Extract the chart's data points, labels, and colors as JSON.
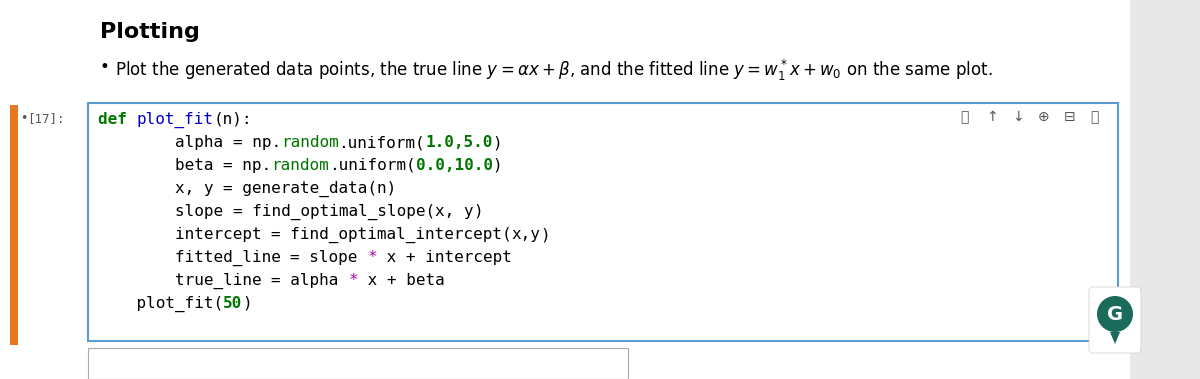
{
  "title": "Plotting",
  "bullet_line": "Plot the generated data points, the true line $y = \\alpha x + \\beta$, and the fitted line $y = w_1^*x + w_0$ on the same plot.",
  "cell_number": "•[17]:",
  "bg_color": "#ffffff",
  "cell_border_color": "#5B9BD5",
  "left_bar_color": "#E87722",
  "outer_bg": "#f0f0f0",
  "title_fontsize": 16,
  "bullet_fontsize": 12,
  "code_fontsize": 11.5,
  "cell_num_fontsize": 10,
  "code_lines": [
    [
      [
        "def ",
        "#007700",
        true
      ],
      [
        "plot_fit",
        "#0000CC",
        false
      ],
      [
        "(n):",
        "#000000",
        false
      ]
    ],
    [
      [
        "        alpha ",
        "#000000",
        false
      ],
      [
        "= np.",
        "#000000",
        false
      ],
      [
        "random",
        "#007700",
        false
      ],
      [
        ".uniform(",
        "#000000",
        false
      ],
      [
        "1.0,5.0",
        "#007700",
        true
      ],
      [
        ")",
        "#000000",
        false
      ]
    ],
    [
      [
        "        beta ",
        "#000000",
        false
      ],
      [
        "= np.",
        "#000000",
        false
      ],
      [
        "random",
        "#007700",
        false
      ],
      [
        ".uniform(",
        "#000000",
        false
      ],
      [
        "0.0,10.0",
        "#007700",
        true
      ],
      [
        ")",
        "#000000",
        false
      ]
    ],
    [
      [
        "        x, y ",
        "#000000",
        false
      ],
      [
        "= generate_data(n)",
        "#000000",
        false
      ]
    ],
    [
      [
        "        slope ",
        "#000000",
        false
      ],
      [
        "= find_optimal_slope(",
        "#000000",
        false
      ],
      [
        "x, y",
        "#000000",
        false
      ],
      [
        ")",
        "#000000",
        false
      ]
    ],
    [
      [
        "        intercept ",
        "#000000",
        false
      ],
      [
        "= find_optimal_intercept(",
        "#000000",
        false
      ],
      [
        "x,y",
        "#000000",
        false
      ],
      [
        ")",
        "#000000",
        false
      ]
    ],
    [
      [
        "        fitted_line ",
        "#000000",
        false
      ],
      [
        "= slope ",
        "#000000",
        false
      ],
      [
        "*",
        "#AA00AA",
        false
      ],
      [
        " x ",
        "#000000",
        false
      ],
      [
        "+ intercept",
        "#000000",
        false
      ]
    ],
    [
      [
        "        true_line ",
        "#000000",
        false
      ],
      [
        "= alpha ",
        "#000000",
        false
      ],
      [
        "*",
        "#AA00AA",
        false
      ],
      [
        " x ",
        "#000000",
        false
      ],
      [
        "+ beta",
        "#000000",
        false
      ]
    ],
    [
      [
        "    plot_fit(",
        "#000000",
        false
      ],
      [
        "50",
        "#007700",
        true
      ],
      [
        ")",
        "#000000",
        false
      ]
    ]
  ]
}
